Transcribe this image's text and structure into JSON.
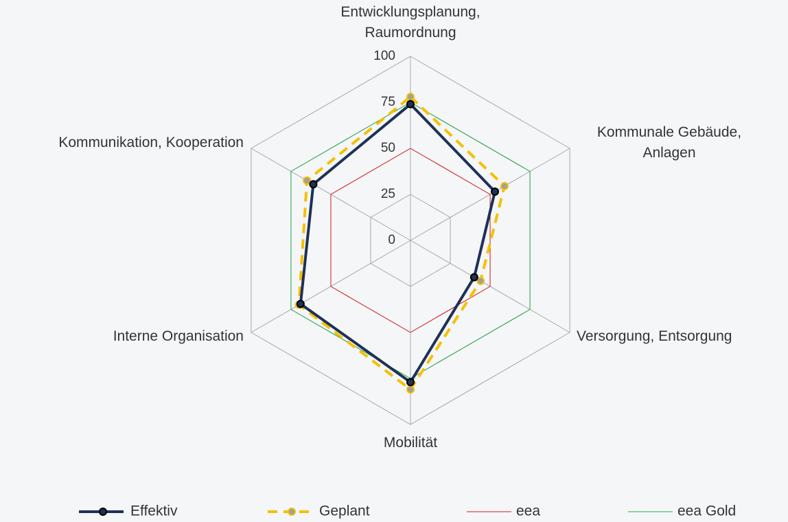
{
  "chart_data": {
    "type": "radar",
    "categories": [
      "Entwicklungsplanung, Raumordnung",
      "Kommunale Gebäude, Anlagen",
      "Versorgung, Entsorgung",
      "Mobilität",
      "Interne Organisation",
      "Kommunikation, Kooperation"
    ],
    "series": [
      {
        "name": "Effektiv",
        "color": "#1f3157",
        "values": [
          74,
          53,
          40,
          77,
          69,
          61
        ]
      },
      {
        "name": "Geplant",
        "color": "#f5c000",
        "values": [
          78,
          59,
          44,
          81,
          70,
          65
        ]
      },
      {
        "name": "eea",
        "color": "#d62020",
        "values": [
          50,
          50,
          50,
          50,
          50,
          50
        ]
      },
      {
        "name": "eea Gold",
        "color": "#2aa84a",
        "values": [
          75,
          75,
          75,
          75,
          75,
          75
        ]
      }
    ],
    "ylim": [
      0,
      100
    ],
    "yticks": [
      0,
      25,
      50,
      75,
      100
    ],
    "grid": true,
    "legend": "bottom"
  }
}
